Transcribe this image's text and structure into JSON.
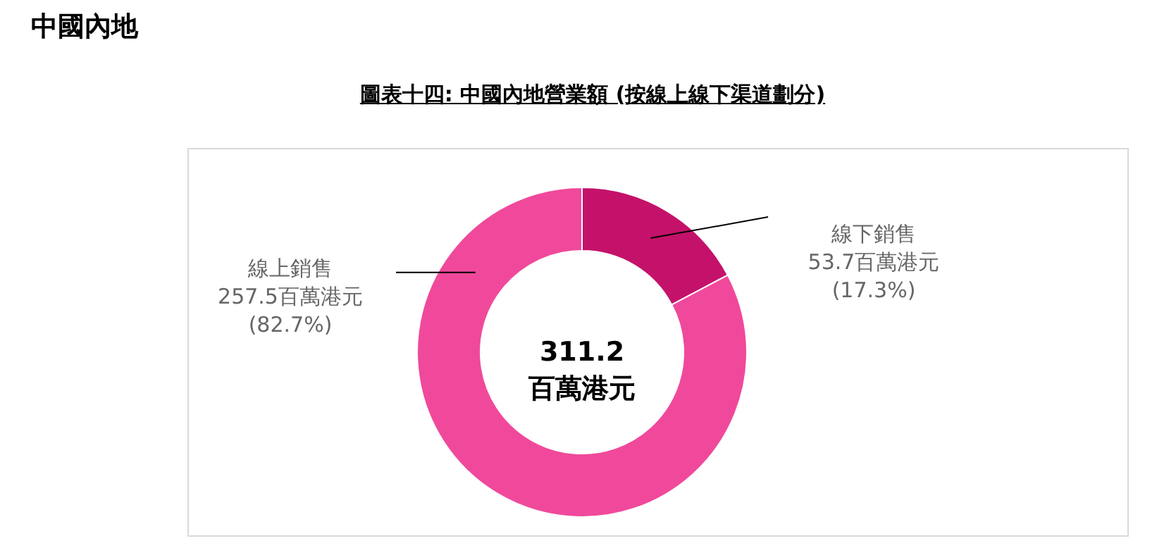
{
  "chart_data": {
    "type": "donut",
    "title": "中國內地",
    "subtitle": "圖表十四: 中國內地營業額 (按線上線下渠道劃分)",
    "categories": [
      "線下銷售",
      "線上銷售"
    ],
    "values": [
      53.7,
      257.5
    ],
    "colors": [
      "#c4126a",
      "#f0499b"
    ],
    "value_labels": [
      "53.7百萬港元\n(17.3%)",
      "257.5百萬港元\n(82.7%)"
    ],
    "annotations": [
      "311.2\n百萬港元"
    ]
  }
}
